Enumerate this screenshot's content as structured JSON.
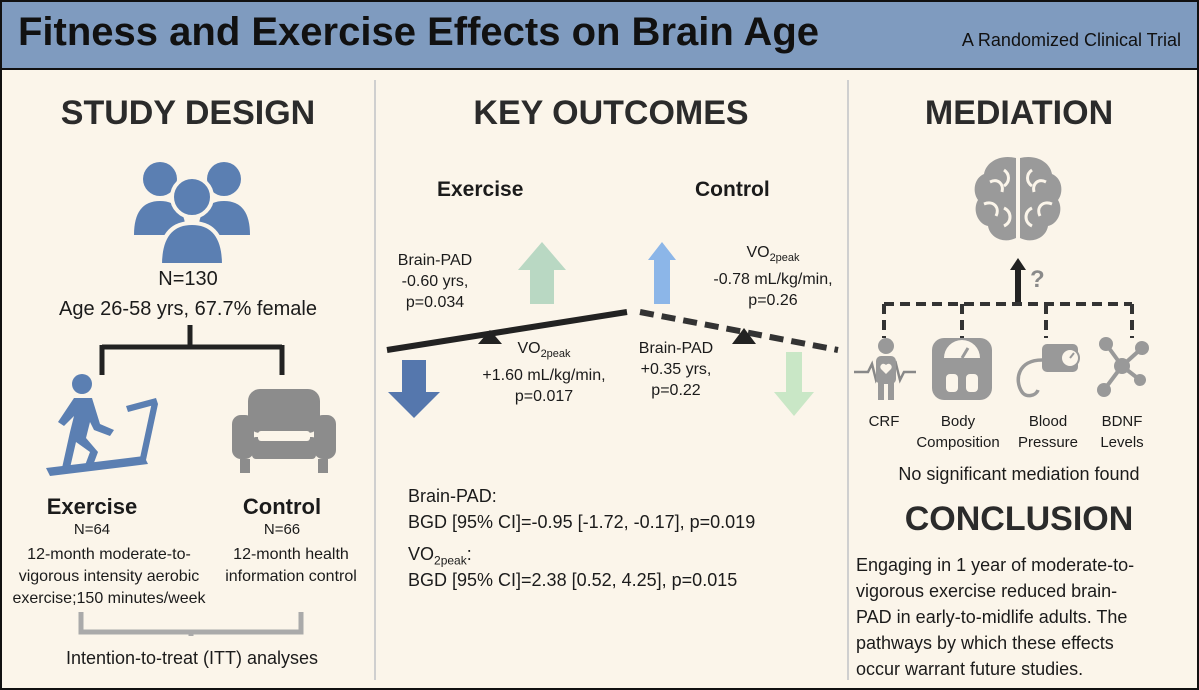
{
  "header": {
    "title": "Fitness and Exercise Effects on Brain Age",
    "subtitle": "A Randomized Clinical Trial"
  },
  "study_design": {
    "heading": "STUDY DESIGN",
    "n_total": "N=130",
    "demographics": "Age 26-58 yrs, 67.7% female",
    "exercise": {
      "label": "Exercise",
      "n": "N=64",
      "desc_line1": "12-month moderate-to-",
      "desc_line2": "vigorous intensity aerobic",
      "desc_line3": "exercise;150 minutes/week"
    },
    "control": {
      "label": "Control",
      "n": "N=66",
      "desc_line1": "12-month health",
      "desc_line2": "information control"
    },
    "analysis": "Intention-to-treat (ITT) analyses"
  },
  "key_outcomes": {
    "heading": "KEY OUTCOMES",
    "exercise_label": "Exercise",
    "control_label": "Control",
    "exercise_brainpad": {
      "l1": "Brain-PAD",
      "l2": "-0.60 yrs,",
      "l3": "p=0.034"
    },
    "exercise_vo2": {
      "base": "VO",
      "sub": "2peak",
      "l2": "+1.60 mL/kg/min,",
      "l3": "p=0.017"
    },
    "control_vo2": {
      "base": "VO",
      "sub": "2peak",
      "l2": "-0.78 mL/kg/min,",
      "l3": "p=0.26"
    },
    "control_brainpad": {
      "l1": "Brain-PAD",
      "l2": "+0.35 yrs,",
      "l3": "p=0.22"
    },
    "summary_brainpad_label": "Brain-PAD:",
    "summary_brainpad_value": "BGD [95% CI]=-0.95 [-1.72, -0.17], p=0.019",
    "summary_vo2_base": "VO",
    "summary_vo2_sub": "2peak",
    "summary_vo2_colon": ":",
    "summary_vo2_value": "BGD [95% CI]=2.38 [0.52, 4.25], p=0.015"
  },
  "mediation": {
    "heading": "MEDIATION",
    "question_mark": "?",
    "mediators": [
      {
        "l1": "CRF",
        "l2": ""
      },
      {
        "l1": "Body",
        "l2": "Composition"
      },
      {
        "l1": "Blood",
        "l2": "Pressure"
      },
      {
        "l1": "BDNF",
        "l2": "Levels"
      }
    ],
    "result": "No significant mediation found"
  },
  "conclusion": {
    "heading": "CONCLUSION",
    "lines": [
      "Engaging in 1 year of moderate-to-",
      "vigorous exercise reduced brain-",
      "PAD in early-to-midlife adults. The",
      "pathways by which these effects",
      "occur warrant future studies."
    ]
  },
  "colors": {
    "header": "#7f9bbf",
    "background": "#fbf5ea",
    "people_icon": "#5b7fb2",
    "exercise_icon": "#5b7fb2",
    "couch_icon": "#8c8c8c",
    "brain_icon": "#9a9a9a",
    "arrow_blue_dark": "#5577ad",
    "arrow_blue_light": "#8cb6e8",
    "arrow_green_light": "#b9d8c3",
    "arrow_green_pale": "#c9e7c6"
  },
  "icons": [
    "people-group-icon",
    "treadmill-runner-icon",
    "armchair-icon",
    "brain-icon",
    "heart-person-icon",
    "scale-icon",
    "blood-pressure-icon",
    "molecule-icon"
  ]
}
